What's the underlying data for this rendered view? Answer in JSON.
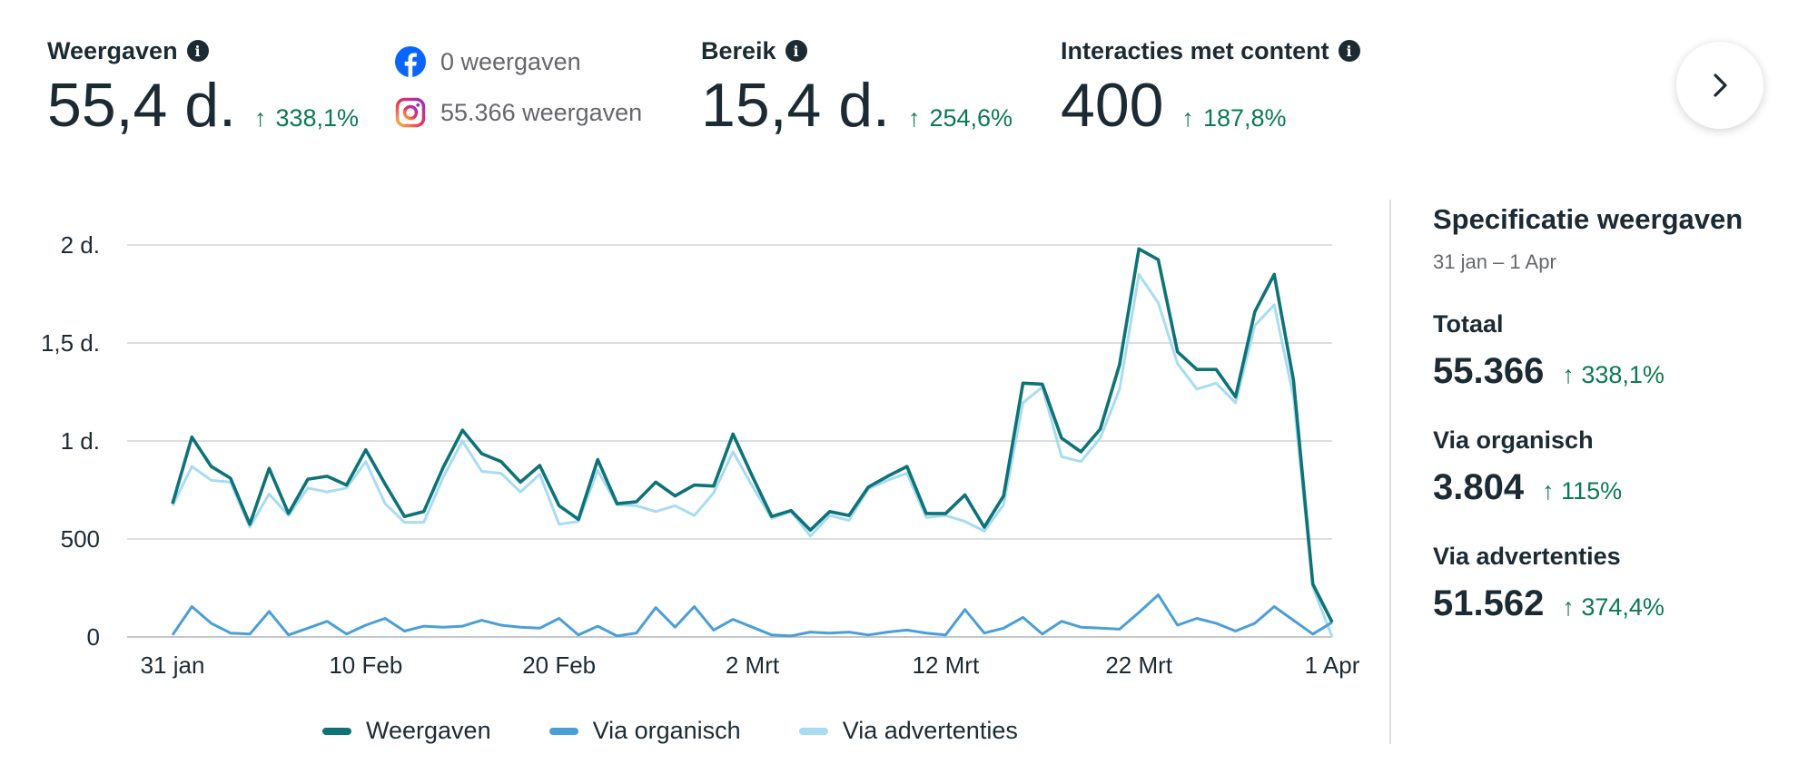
{
  "metrics": [
    {
      "label": "Weergaven",
      "value": "55,4 d.",
      "change": "338,1%"
    },
    {
      "label": "Bereik",
      "value": "15,4 d.",
      "change": "254,6%"
    },
    {
      "label": "Interacties met content",
      "value": "400",
      "change": "187,8%"
    }
  ],
  "platforms": [
    {
      "icon": "facebook-icon",
      "text": "0 weergaven"
    },
    {
      "icon": "instagram-icon",
      "text": "55.366 weergaven"
    }
  ],
  "spec": {
    "title": "Specificatie weergaven",
    "date_range": "31 jan – 1 Apr",
    "items": [
      {
        "label": "Totaal",
        "value": "55.366",
        "change": "338,1%"
      },
      {
        "label": "Via organisch",
        "value": "3.804",
        "change": "115%"
      },
      {
        "label": "Via advertenties",
        "value": "51.562",
        "change": "374,4%"
      }
    ]
  },
  "colors": {
    "weergaven": "#0d7377",
    "organisch": "#4a9fd8",
    "advertenties": "#a8dcf2",
    "positive": "#0b7a52",
    "grid": "#d0d3d6"
  },
  "chart_data": {
    "type": "line",
    "ylim": [
      0,
      2000
    ],
    "y_ticks": [
      "0",
      "500",
      "1 d.",
      "1,5 d.",
      "2 d."
    ],
    "x_ticks": [
      "31 jan",
      "10 Feb",
      "20 Feb",
      "2 Mrt",
      "12 Mrt",
      "22 Mrt",
      "1 Apr"
    ],
    "series": [
      {
        "name": "Weergaven",
        "values": [
          680,
          1020,
          870,
          810,
          575,
          860,
          630,
          805,
          820,
          775,
          955,
          780,
          615,
          640,
          865,
          1055,
          935,
          895,
          790,
          875,
          670,
          600,
          905,
          680,
          690,
          790,
          720,
          775,
          770,
          1035,
          820,
          615,
          645,
          545,
          640,
          620,
          765,
          820,
          870,
          630,
          630,
          725,
          560,
          720,
          1295,
          1290,
          1015,
          945,
          1060,
          1390,
          1980,
          1925,
          1455,
          1365,
          1365,
          1225,
          1660,
          1850,
          1310,
          270,
          75
        ]
      },
      {
        "name": "Via organisch",
        "values": [
          10,
          155,
          70,
          20,
          15,
          130,
          10,
          45,
          80,
          15,
          60,
          95,
          30,
          55,
          50,
          55,
          85,
          60,
          50,
          45,
          95,
          10,
          55,
          5,
          20,
          150,
          50,
          155,
          35,
          90,
          50,
          10,
          5,
          25,
          20,
          25,
          10,
          25,
          35,
          20,
          10,
          140,
          20,
          45,
          100,
          15,
          80,
          50,
          45,
          40,
          125,
          215,
          60,
          95,
          70,
          30,
          70,
          155,
          85,
          15,
          75
        ]
      },
      {
        "name": "Via advertenties",
        "values": [
          670,
          870,
          800,
          790,
          560,
          730,
          620,
          760,
          740,
          760,
          895,
          680,
          585,
          585,
          815,
          1000,
          845,
          835,
          740,
          830,
          575,
          590,
          850,
          675,
          670,
          640,
          670,
          620,
          735,
          945,
          770,
          605,
          640,
          515,
          620,
          595,
          755,
          800,
          835,
          610,
          620,
          590,
          540,
          675,
          1195,
          1275,
          920,
          895,
          1015,
          1265,
          1850,
          1705,
          1395,
          1265,
          1295,
          1195,
          1590,
          1695,
          1225,
          255,
          0
        ]
      }
    ]
  },
  "legend": [
    "Weergaven",
    "Via organisch",
    "Via advertenties"
  ]
}
